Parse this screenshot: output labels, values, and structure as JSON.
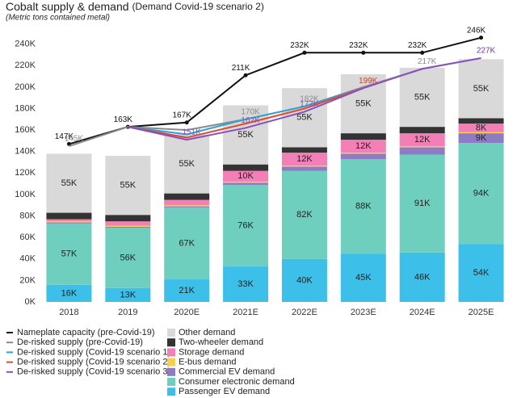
{
  "chart_data": {
    "type": "bar",
    "title": "Cobalt supply & demand",
    "title_note": "(Demand Covid-19 scenario 2)",
    "subtitle": "(Metric tons contained metal)",
    "categories": [
      "2018",
      "2019",
      "2020E",
      "2021E",
      "2022E",
      "2023E",
      "2024E",
      "2025E"
    ],
    "ylim": [
      0,
      245
    ],
    "yticks": [
      {
        "value": 0,
        "label": "0K"
      },
      {
        "value": 20,
        "label": "20K"
      },
      {
        "value": 40,
        "label": "40K"
      },
      {
        "value": 60,
        "label": "60K"
      },
      {
        "value": 80,
        "label": "80K"
      },
      {
        "value": 100,
        "label": "100K"
      },
      {
        "value": 120,
        "label": "120K"
      },
      {
        "value": 140,
        "label": "140K"
      },
      {
        "value": 160,
        "label": "160K"
      },
      {
        "value": 180,
        "label": "180K"
      },
      {
        "value": 200,
        "label": "200K"
      },
      {
        "value": 220,
        "label": "220K"
      },
      {
        "value": 240,
        "label": "240K"
      }
    ],
    "stacked": true,
    "series": [
      {
        "name": "Passenger EV demand",
        "type": "bar",
        "color": "#3cc0ea",
        "values": [
          16,
          13,
          21,
          33,
          40,
          45,
          46,
          54
        ],
        "value_labels": [
          "16K",
          "13K",
          "21K",
          "33K",
          "40K",
          "45K",
          "46K",
          "54K"
        ]
      },
      {
        "name": "Consumer electronic demand",
        "type": "bar",
        "color": "#6fcfbf",
        "values": [
          57,
          56,
          67,
          76,
          82,
          88,
          91,
          94
        ],
        "value_labels": [
          "57K",
          "56K",
          "67K",
          "76K",
          "82K",
          "88K",
          "91K",
          "94K"
        ]
      },
      {
        "name": "Commercial EV demand",
        "type": "bar",
        "color": "#8d7bc4",
        "values": [
          1,
          1,
          1,
          2,
          4,
          5,
          7,
          9
        ],
        "value_labels": [
          null,
          null,
          null,
          null,
          null,
          null,
          null,
          "9K"
        ]
      },
      {
        "name": "E-bus demand",
        "type": "bar",
        "color": "#f3d24a",
        "values": [
          1,
          1,
          1,
          1,
          1,
          1,
          1,
          1
        ]
      },
      {
        "name": "Storage demand",
        "type": "bar",
        "color": "#f27fb5",
        "values": [
          2,
          4,
          5,
          10,
          12,
          12,
          12,
          8
        ],
        "value_labels": [
          null,
          null,
          null,
          "10K",
          "12K",
          "12K",
          "12K",
          "8K"
        ]
      },
      {
        "name": "Two-wheeler demand",
        "type": "bar",
        "color": "#333333",
        "values": [
          6,
          6,
          6,
          6,
          5,
          6,
          6,
          5
        ]
      },
      {
        "name": "Other demand",
        "type": "bar",
        "color": "#d9d9d9",
        "values": [
          55,
          55,
          55,
          55,
          55,
          55,
          55,
          55
        ],
        "value_labels": [
          "55K",
          "55K",
          "55K",
          "55K",
          "55K",
          "55K",
          "55K",
          "55K"
        ]
      },
      {
        "name": "Nameplate capacity (pre-Covid-19)",
        "type": "line",
        "color": "#111111",
        "markers": true,
        "values": [
          147,
          163,
          167,
          211,
          232,
          232,
          232,
          246
        ],
        "value_labels": [
          "147K",
          "163K",
          "167K",
          "211K",
          "232K",
          "232K",
          "232K",
          "246K"
        ]
      },
      {
        "name": "De-risked supply (pre-Covid-19)",
        "type": "line",
        "color": "#8a8a8a",
        "values": [
          145,
          163,
          160,
          170,
          182,
          200,
          217,
          227
        ],
        "value_labels": [
          "145K",
          null,
          null,
          "170K",
          "182K",
          null,
          "217K",
          "227K"
        ]
      },
      {
        "name": "De-risked supply (Covid-19 scenario 1)",
        "type": "line",
        "color": "#2aa3d8",
        "values": [
          null,
          163,
          156,
          170,
          182,
          199,
          null,
          null
        ],
        "value_labels": [
          null,
          null,
          null,
          null,
          null,
          "199K",
          null,
          null
        ]
      },
      {
        "name": "De-risked supply (Covid-19 scenario 2)",
        "type": "line",
        "color": "#e04a2a",
        "values": [
          null,
          163,
          153,
          166,
          180,
          199,
          null,
          null
        ],
        "value_labels": [
          null,
          null,
          null,
          null,
          null,
          "199K",
          null,
          null
        ]
      },
      {
        "name": "De-risked supply (Covid-19 scenario 3)",
        "type": "line",
        "color": "#8a4fbf",
        "values": [
          null,
          163,
          151,
          162,
          177,
          199,
          217,
          227
        ],
        "value_labels": [
          null,
          null,
          "151K",
          "162K",
          "177K",
          null,
          null,
          "227K"
        ]
      }
    ]
  }
}
